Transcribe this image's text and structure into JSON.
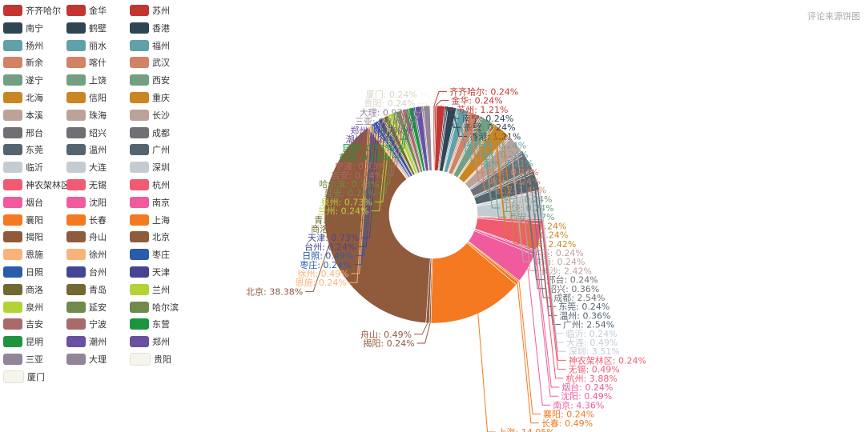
{
  "subtitle": "评论来源饼图",
  "chart_data": {
    "type": "pie",
    "variant": "donut",
    "categories": [
      "齐齐哈尔",
      "金华",
      "苏州",
      "南宁",
      "鹤壁",
      "香港",
      "扬州",
      "丽水",
      "福州",
      "新余",
      "喀什",
      "武汉",
      "遂宁",
      "上饶",
      "西安",
      "北海",
      "信阳",
      "重庆",
      "本溪",
      "珠海",
      "长沙",
      "邢台",
      "绍兴",
      "成都",
      "东莞",
      "温州",
      "广州",
      "临沂",
      "大连",
      "深圳",
      "神农架林区",
      "无锡",
      "杭州",
      "烟台",
      "沈阳",
      "南京",
      "襄阳",
      "长春",
      "上海",
      "揭阳",
      "舟山",
      "北京",
      "恩施",
      "徐州",
      "枣庄",
      "日照",
      "台州",
      "天津",
      "商洛",
      "青岛",
      "兰州",
      "泉州",
      "延安",
      "哈尔滨",
      "吉安",
      "宁波",
      "东营",
      "昆明",
      "潮州",
      "郑州",
      "三亚",
      "大理",
      "贵阳",
      "厦门"
    ],
    "values": [
      0.24,
      0.24,
      1.21,
      0.24,
      0.24,
      1.21,
      0.24,
      0.24,
      1.21,
      0.24,
      0.24,
      1.45,
      0.24,
      0.24,
      1.7,
      0.24,
      0.24,
      2.42,
      0.24,
      0.24,
      2.42,
      0.24,
      0.36,
      2.54,
      0.24,
      0.36,
      2.54,
      0.24,
      0.49,
      3.51,
      0.24,
      0.49,
      3.88,
      0.24,
      0.49,
      4.36,
      0.24,
      0.49,
      14.05,
      0.24,
      0.49,
      38.38,
      0.24,
      0.49,
      0.24,
      0.49,
      0.24,
      0.73,
      0.24,
      0.73,
      0.24,
      0.73,
      0.24,
      0.73,
      0.24,
      0.73,
      0.24,
      0.73,
      0.24,
      0.97,
      0.24,
      0.97,
      0.24,
      0.24
    ],
    "colors": [
      "#c23531",
      "#c23531",
      "#c23531",
      "#2f4554",
      "#2f4554",
      "#2f4554",
      "#61a0a8",
      "#61a0a8",
      "#61a0a8",
      "#d48265",
      "#d48265",
      "#d48265",
      "#749f83",
      "#749f83",
      "#749f83",
      "#ca8622",
      "#ca8622",
      "#ca8622",
      "#bda29a",
      "#bda29a",
      "#bda29a",
      "#6e7074",
      "#6e7074",
      "#6e7074",
      "#546570",
      "#546570",
      "#546570",
      "#c4ccd3",
      "#c4ccd3",
      "#c4ccd3",
      "#f05b72",
      "#f05b72",
      "#f05b72",
      "#ef5b9c",
      "#ef5b9c",
      "#ef5b9c",
      "#f47920",
      "#f47920",
      "#f47920",
      "#905a3d",
      "#905a3d",
      "#905a3d",
      "#fab27b",
      "#fab27b",
      "#2a5caa",
      "#2a5caa",
      "#444693",
      "#444693",
      "#726930",
      "#726930",
      "#b2d235",
      "#b2d235",
      "#6f8a4a",
      "#6f8a4a",
      "#aa6a6a",
      "#aa6a6a",
      "#1d953f",
      "#1d953f",
      "#6950a1",
      "#6950a1",
      "#918597",
      "#918597",
      "#f6f5ec",
      "#f6f5ec"
    ],
    "label_format": "{name}: {value}%",
    "legend_position": "left",
    "label_lines": true
  }
}
